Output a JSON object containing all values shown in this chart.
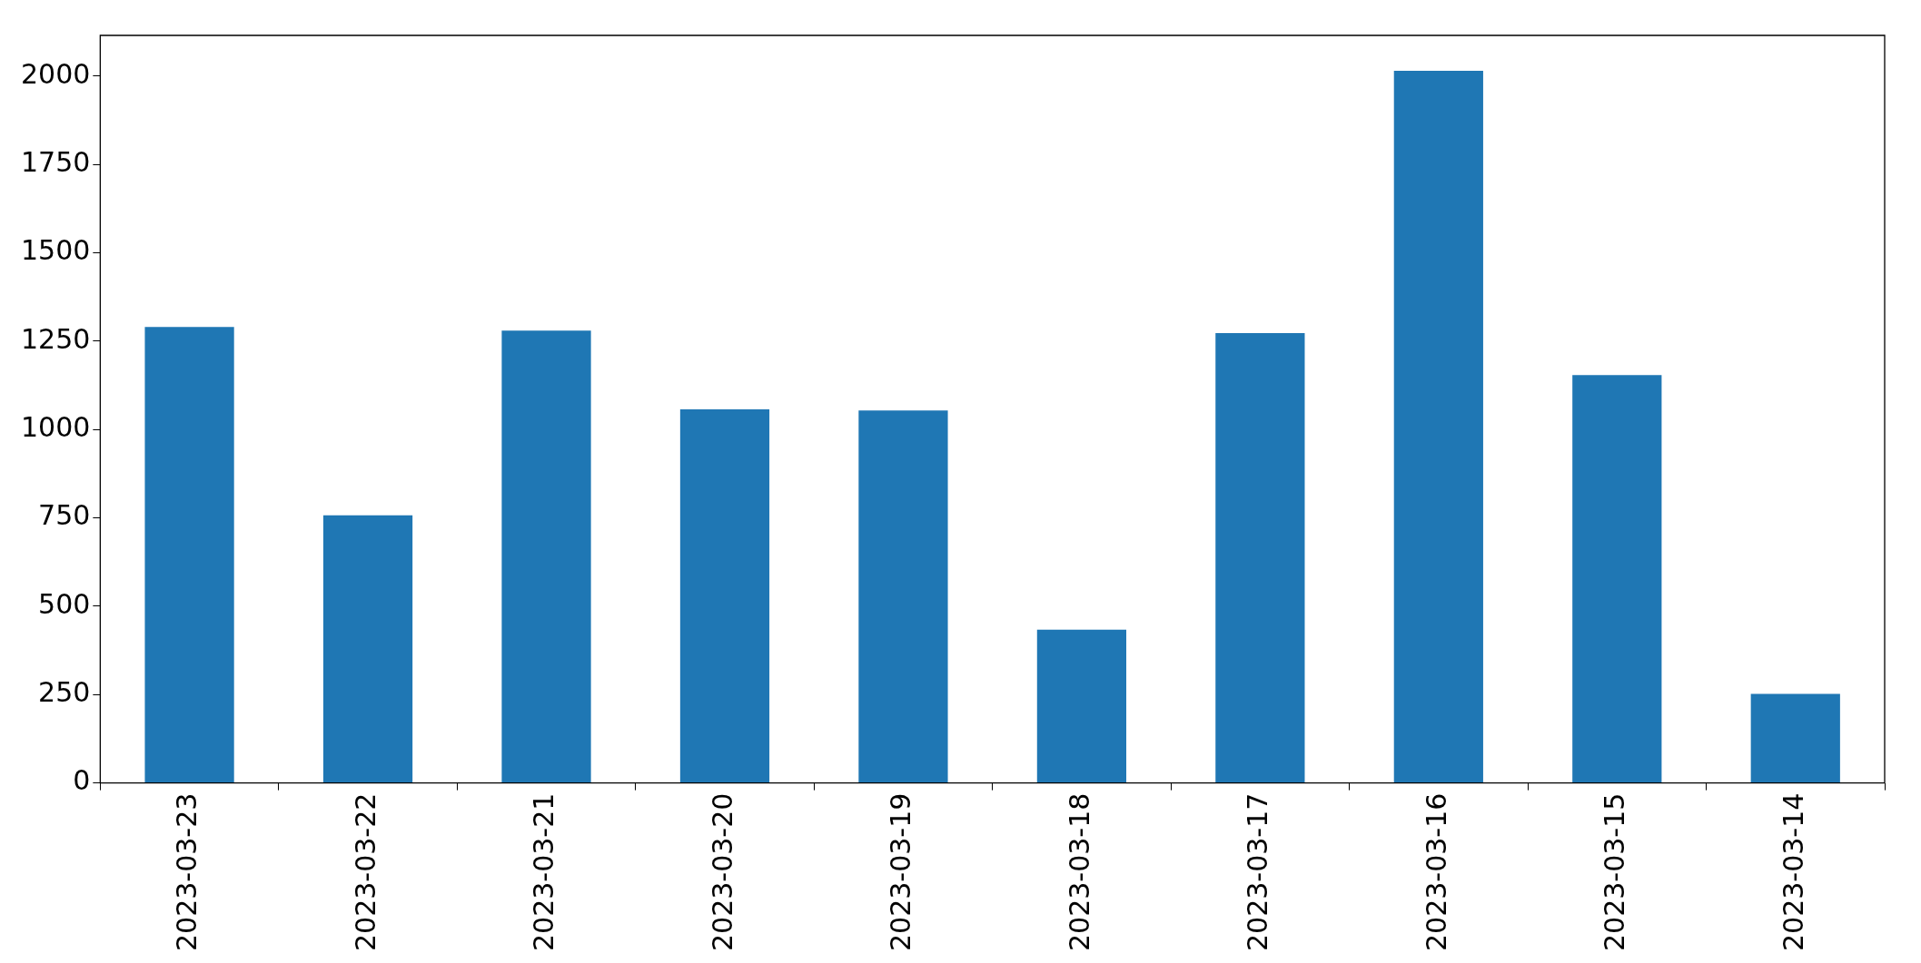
{
  "chart_data": {
    "type": "bar",
    "categories": [
      "2023-03-23",
      "2023-03-22",
      "2023-03-21",
      "2023-03-20",
      "2023-03-19",
      "2023-03-18",
      "2023-03-17",
      "2023-03-16",
      "2023-03-15",
      "2023-03-14"
    ],
    "values": [
      1290,
      757,
      1280,
      1057,
      1054,
      434,
      1273,
      2015,
      1154,
      252
    ],
    "color": "#1f77b4",
    "ylim": [
      0,
      2115
    ],
    "yticks": [
      0,
      250,
      500,
      750,
      1000,
      1250,
      1500,
      1750,
      2000
    ],
    "grid": false,
    "legend": false
  }
}
